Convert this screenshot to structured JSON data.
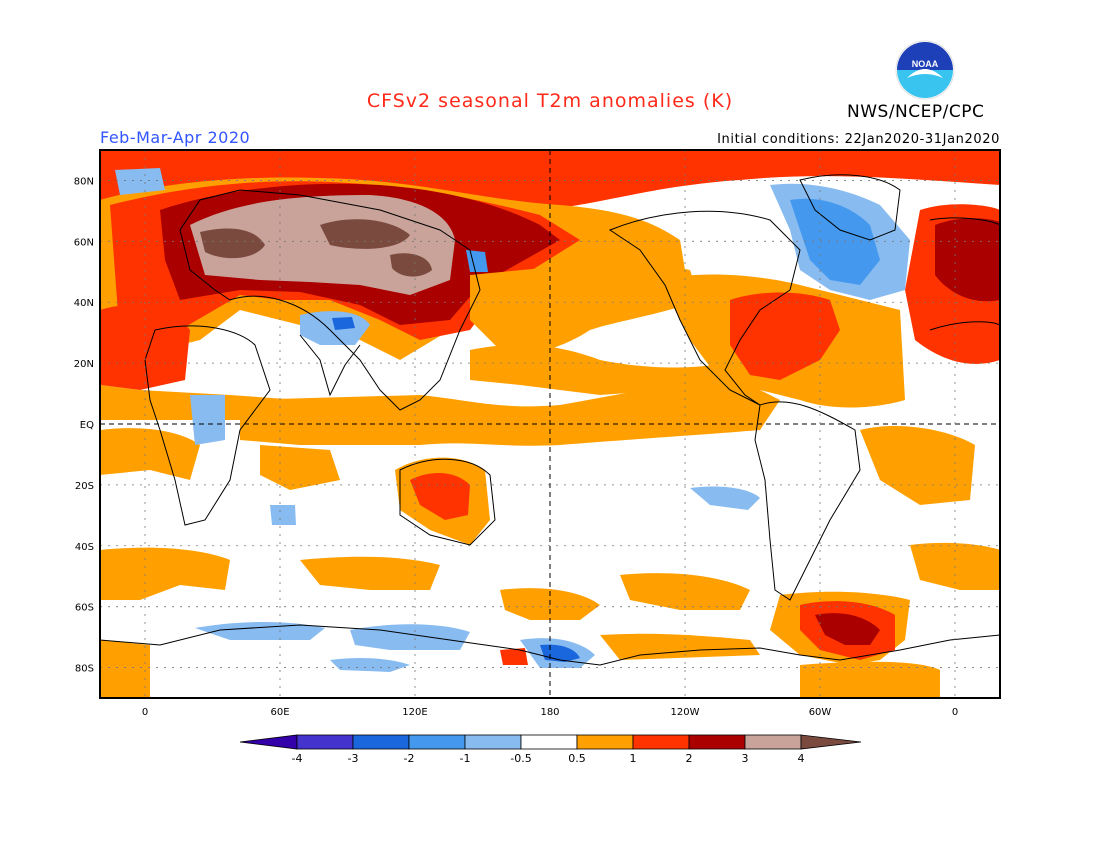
{
  "header": {
    "title": "CFSv2 seasonal T2m anomalies (K)",
    "period": "Feb-Mar-Apr 2020",
    "initial_conditions": "Initial conditions: 22Jan2020-31Jan2020",
    "agency": "NWS/NCEP/CPC",
    "logo_text": "NOAA"
  },
  "map": {
    "lat_labels": [
      "80N",
      "60N",
      "40N",
      "20N",
      "EQ",
      "20S",
      "40S",
      "60S",
      "80S"
    ],
    "lat_values": [
      80,
      60,
      40,
      20,
      0,
      -20,
      -40,
      -60,
      -80
    ],
    "lon_labels": [
      "0",
      "60E",
      "120E",
      "180",
      "120W",
      "60W",
      "0"
    ],
    "lon_values": [
      0,
      60,
      120,
      180,
      240,
      300,
      360
    ],
    "lon_range": [
      -20,
      380
    ],
    "lat_range": [
      -90,
      90
    ],
    "anomaly_regions": [
      {
        "name": "arctic-band",
        "lon": [
          -20,
          380
        ],
        "lat": [
          78,
          90
        ],
        "level": "2"
      },
      {
        "name": "eurasia-warm",
        "lon": [
          -10,
          180
        ],
        "lat": [
          30,
          78
        ],
        "level": "1"
      },
      {
        "name": "eurasia-strong",
        "lon": [
          10,
          165
        ],
        "lat": [
          38,
          75
        ],
        "level": "3"
      },
      {
        "name": "siberia-extreme",
        "lon": [
          30,
          120
        ],
        "lat": [
          48,
          72
        ],
        "level": "4"
      },
      {
        "name": "labrador-cool",
        "lon": [
          285,
          330
        ],
        "lat": [
          45,
          75
        ],
        "level": "-1"
      },
      {
        "name": "tibet-cool",
        "lon": [
          80,
          100
        ],
        "lat": [
          28,
          36
        ],
        "level": "-2"
      },
      {
        "name": "antarctic-pen-warm",
        "lon": [
          295,
          330
        ],
        "lat": [
          -75,
          -60
        ],
        "level": "3"
      },
      {
        "name": "ross-cool",
        "lon": [
          170,
          200
        ],
        "lat": [
          -78,
          -70
        ],
        "level": "-2"
      },
      {
        "name": "australia-warm",
        "lon": [
          118,
          150
        ],
        "lat": [
          -30,
          -15
        ],
        "level": "2"
      },
      {
        "name": "se-pacific-cool",
        "lon": [
          255,
          275
        ],
        "lat": [
          -25,
          -18
        ],
        "level": "-1"
      }
    ]
  },
  "colorbar": {
    "labels": [
      "-4",
      "-3",
      "-2",
      "-1",
      "-0.5",
      "0.5",
      "1",
      "2",
      "3",
      "4"
    ],
    "colors": [
      "#3300aa",
      "#4433cc",
      "#1a66dd",
      "#4499ee",
      "#88bbf0",
      "#ffffff",
      "#ffa000",
      "#ff3300",
      "#aa0000",
      "#c9a39a",
      "#7a4a3e"
    ]
  },
  "colors": {
    "ocean_neutral": "#ffffff",
    "warm_05": "#ffa000",
    "warm_1": "#ff3300",
    "warm_2": "#aa0000",
    "warm_3": "#c9a39a",
    "warm_4": "#7a4a3e",
    "cool_05": "#88bbf0",
    "cool_1": "#4499ee",
    "cool_2": "#1a66dd"
  }
}
